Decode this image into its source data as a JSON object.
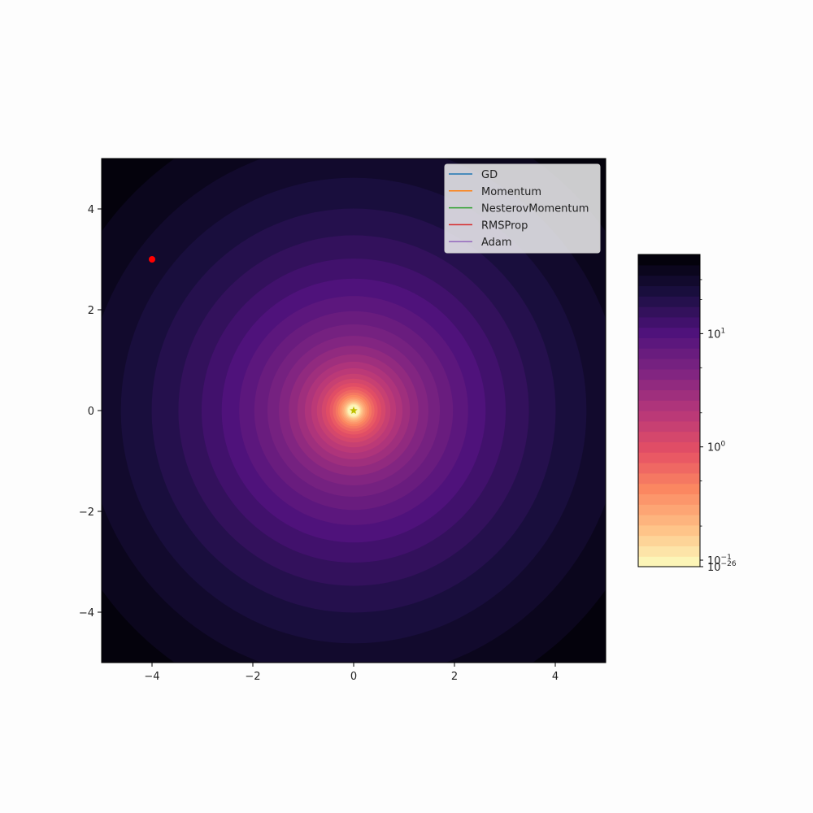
{
  "chart_data": [
    {
      "type": "contour",
      "title": "",
      "xlabel": "",
      "ylabel": "",
      "xlim": [
        -5,
        5
      ],
      "ylim": [
        -5,
        5
      ],
      "x_ticks": [
        -4,
        -2,
        0,
        2,
        4
      ],
      "y_ticks": [
        -4,
        -2,
        0,
        2,
        4
      ],
      "x_tick_labels": [
        "−4",
        "−2",
        "0",
        "2",
        "4"
      ],
      "y_tick_labels": [
        "−4",
        "−2",
        "0",
        "2",
        "4"
      ],
      "surface": "x^2 + y^2",
      "colormap": "magma_r",
      "contour_levels": 30,
      "grid": false,
      "legend_position": "top-right",
      "series": [
        {
          "name": "GD",
          "color": "#1f77b4",
          "x": [
            -4
          ],
          "y": [
            3
          ]
        },
        {
          "name": "Momentum",
          "color": "#ff7f0e",
          "x": [
            -4
          ],
          "y": [
            3
          ]
        },
        {
          "name": "NesterovMomentum",
          "color": "#2ca02c",
          "x": [
            -4
          ],
          "y": [
            3
          ]
        },
        {
          "name": "RMSProp",
          "color": "#d62728",
          "x": [
            -4
          ],
          "y": [
            3
          ]
        },
        {
          "name": "Adam",
          "color": "#9467bd",
          "x": [
            -4
          ],
          "y": [
            3
          ]
        }
      ],
      "start_point": {
        "x": -4,
        "y": 3,
        "color": "#ff0000"
      },
      "minimum_marker": {
        "x": 0,
        "y": 0,
        "color": "#bfbf00",
        "marker": "star"
      }
    },
    {
      "type": "colorbar",
      "scale": "log",
      "range": [
        1e-26,
        50
      ],
      "tick_labels": [
        {
          "value": 10,
          "base": "10",
          "exp": "1"
        },
        {
          "value": 1,
          "base": "10",
          "exp": "0"
        },
        {
          "value": 0.1,
          "base": "10",
          "exp": "−1"
        },
        {
          "value": 1e-26,
          "base": "10",
          "exp": "−26"
        }
      ]
    }
  ]
}
